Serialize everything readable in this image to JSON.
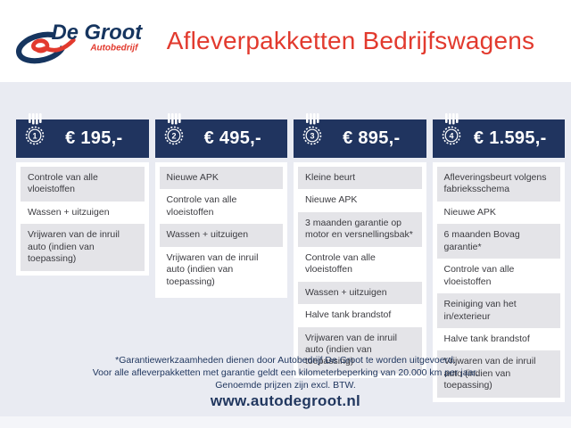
{
  "brand": {
    "name": "De Groot",
    "subtitle": "Autobedrijf"
  },
  "header": {
    "title": "Afleverpakketten Bedrijfswagens"
  },
  "packages": [
    {
      "number": "1",
      "price": "€ 195,-",
      "items": [
        "Controle van alle vloeistoffen",
        "Wassen + uitzuigen",
        "Vrijwaren van de inruil auto (indien van toepassing)"
      ]
    },
    {
      "number": "2",
      "price": "€ 495,-",
      "items": [
        "Nieuwe APK",
        "Controle van alle vloeistoffen",
        "Wassen + uitzuigen",
        "Vrijwaren van de inruil auto (indien van toepassing)"
      ]
    },
    {
      "number": "3",
      "price": "€ 895,-",
      "items": [
        "Kleine beurt",
        "Nieuwe APK",
        "3 maanden garantie op motor en versnellingsbak*",
        "Controle van alle vloeistoffen",
        "Wassen + uitzuigen",
        "Halve tank brandstof",
        "Vrijwaren van de inruil auto (indien van toepassing)"
      ]
    },
    {
      "number": "4",
      "price": "€ 1.595,-",
      "items": [
        "Afleveringsbeurt volgens fabrieksschema",
        "Nieuwe APK",
        "6 maanden Bovag garantie*",
        "Controle van alle vloeistoffen",
        "Reiniging van het in/exterieur",
        "Halve tank brandstof",
        "Vrijwaren van de inruil auto (indien van toepassing)"
      ]
    }
  ],
  "footer": {
    "notes": [
      "*Garantiewerkzaamheden dienen door Autobedrijf De Groot te worden uitgevoerd.",
      "Voor alle afleverpakketten met garantie geldt een kilometerbeperking van 20.000 km per jaar.",
      "Genoemde prijzen zijn excl. BTW."
    ],
    "website": "www.autodegroot.nl"
  },
  "colors": {
    "navy": "#20345f",
    "red": "#e23a2e",
    "background": "#e9ebf2",
    "row_gray": "#e4e4e8",
    "white": "#ffffff"
  }
}
